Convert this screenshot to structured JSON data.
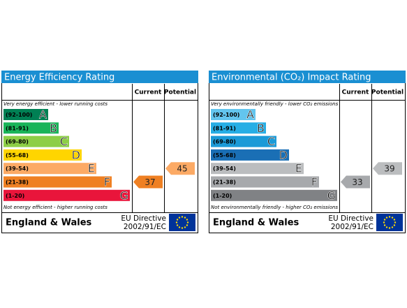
{
  "panels": [
    {
      "title": "Energy Efficiency Rating",
      "current_header": "Current",
      "potential_header": "Potential",
      "top_note": "Very energy efficient - lower running costs",
      "bottom_note": "Not energy efficient - higher running costs",
      "bands": [
        {
          "range": "(92-100)",
          "letter": "A",
          "color": "#008054"
        },
        {
          "range": "(81-91)",
          "letter": "B",
          "color": "#19b459"
        },
        {
          "range": "(69-80)",
          "letter": "C",
          "color": "#8dce46"
        },
        {
          "range": "(55-68)",
          "letter": "D",
          "color": "#ffd500"
        },
        {
          "range": "(39-54)",
          "letter": "E",
          "color": "#fcaa65"
        },
        {
          "range": "(21-38)",
          "letter": "F",
          "color": "#ef8023"
        },
        {
          "range": "(1-20)",
          "letter": "G",
          "color": "#e9153b"
        }
      ],
      "current": 37,
      "potential": 45,
      "region": "England & Wales",
      "directive": [
        "EU Directive",
        "2002/91/EC"
      ]
    },
    {
      "title": "Environmental (CO₂) Impact Rating",
      "current_header": "Current",
      "potential_header": "Potential",
      "top_note": "Very environmentally friendly - lower CO₂ emissions",
      "bottom_note": "Not environmentally friendly - higher CO₂ emissions",
      "bands": [
        {
          "range": "(92-100)",
          "letter": "A",
          "color": "#63c5ee"
        },
        {
          "range": "(81-91)",
          "letter": "B",
          "color": "#26aee5"
        },
        {
          "range": "(69-80)",
          "letter": "C",
          "color": "#1b9ad7"
        },
        {
          "range": "(55-68)",
          "letter": "D",
          "color": "#1a6fb5"
        },
        {
          "range": "(39-54)",
          "letter": "E",
          "color": "#bbbdbf"
        },
        {
          "range": "(21-38)",
          "letter": "F",
          "color": "#a7a9ac"
        },
        {
          "range": "(1-20)",
          "letter": "G",
          "color": "#808285"
        }
      ],
      "current": 33,
      "potential": 39,
      "region": "England & Wales",
      "directive": [
        "EU Directive",
        "2002/91/EC"
      ]
    }
  ]
}
